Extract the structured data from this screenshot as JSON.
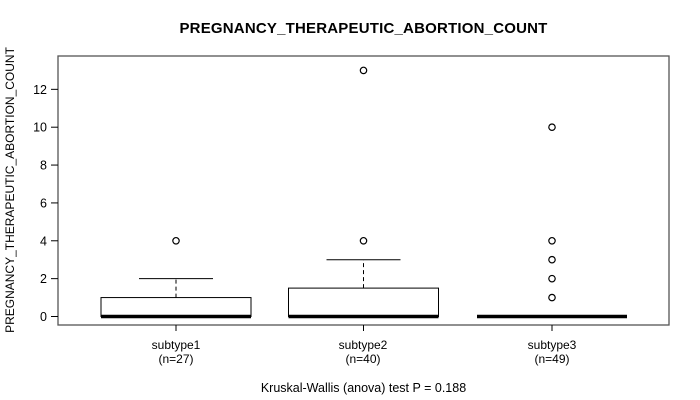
{
  "chart_data": {
    "type": "boxplot",
    "title": "PREGNANCY_THERAPEUTIC_ABORTION_COUNT",
    "ylabel": "PREGNANCY_THERAPEUTIC_ABORTION_COUNT",
    "xlabel": "",
    "annotation": "Kruskal-Wallis (anova) test P = 0.188",
    "ylim": [
      -0.45,
      13.75
    ],
    "yticks": [
      0,
      2,
      4,
      6,
      8,
      10,
      12
    ],
    "grid": false,
    "legend": "none",
    "colors": {
      "box_fill": "#ffffff",
      "line": "#000000",
      "frame": "#555555"
    },
    "groups": [
      {
        "label": "subtype1",
        "sublabel": "(n=27)",
        "n": 27,
        "q1": 0,
        "median": 0,
        "q3": 1,
        "whisker_low": 0,
        "whisker_high": 2,
        "outliers": [
          4
        ]
      },
      {
        "label": "subtype2",
        "sublabel": "(n=40)",
        "n": 40,
        "q1": 0,
        "median": 0,
        "q3": 1.5,
        "whisker_low": 0,
        "whisker_high": 3,
        "outliers": [
          4,
          13
        ]
      },
      {
        "label": "subtype3",
        "sublabel": "(n=49)",
        "n": 49,
        "q1": 0,
        "median": 0,
        "q3": 0,
        "whisker_low": 0,
        "whisker_high": 0,
        "outliers": [
          1,
          2,
          3,
          4,
          10
        ]
      }
    ]
  }
}
